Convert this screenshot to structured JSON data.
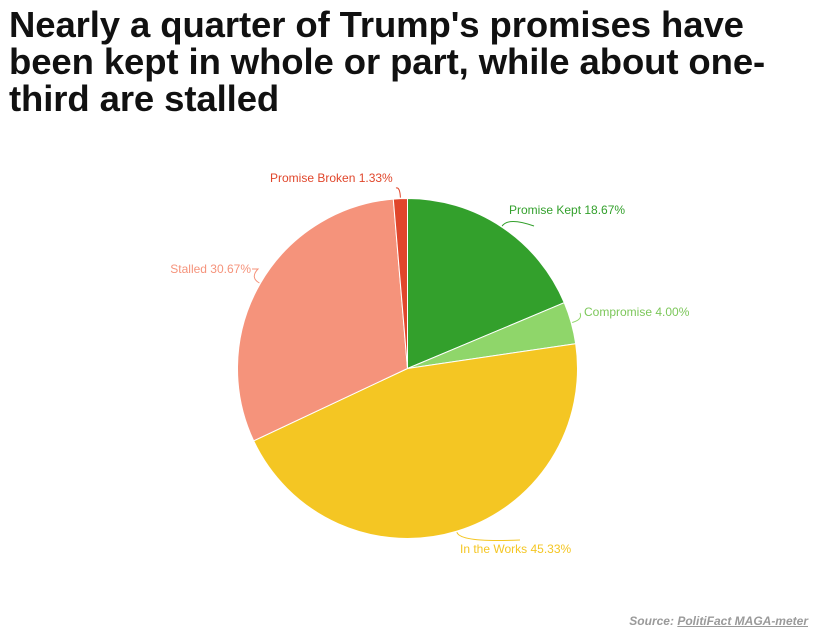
{
  "headline": "Nearly a quarter of Trump's promises have been kept in whole or part, while about one-third are stalled",
  "source": {
    "label": "Source:",
    "link_text": "PolitiFact MAGA-meter"
  },
  "chart_data": {
    "type": "pie",
    "title": "Nearly a quarter of Trump's promises have been kept in whole or part, while about one-third are stalled",
    "series": [
      {
        "name": "Promise Kept",
        "value": 18.67,
        "label": "Promise Kept 18.67%",
        "color": "#33a02c"
      },
      {
        "name": "Compromise",
        "value": 4.0,
        "label": "Compromise 4.00%",
        "color": "#8fd66a"
      },
      {
        "name": "In the Works",
        "value": 45.33,
        "label": "In the Works 45.33%",
        "color": "#f4c623"
      },
      {
        "name": "Stalled",
        "value": 30.67,
        "label": "Stalled 30.67%",
        "color": "#f5937b"
      },
      {
        "name": "Promise Broken",
        "value": 1.33,
        "label": "Promise Broken 1.33%",
        "color": "#e0462b"
      }
    ],
    "start_angle_deg": 0,
    "direction": "clockwise"
  }
}
